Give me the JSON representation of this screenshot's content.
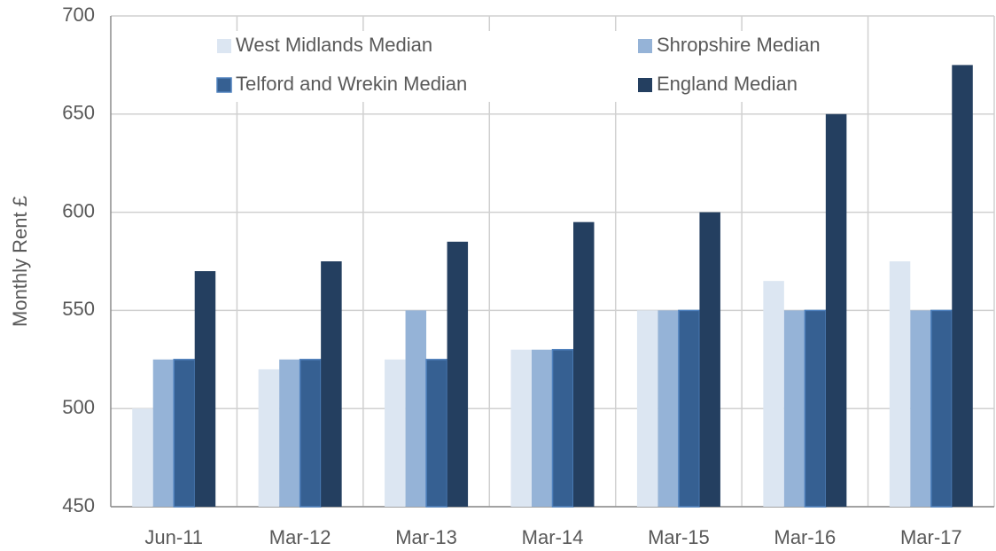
{
  "chart_data": {
    "type": "bar",
    "y_label": "Monthly Rent £",
    "categories": [
      "Jun-11",
      "Mar-12",
      "Mar-13",
      "Mar-14",
      "Mar-15",
      "Mar-16",
      "Mar-17"
    ],
    "series": [
      {
        "name": "West Midlands Median",
        "color": "#dce6f2",
        "values": [
          500,
          520,
          525,
          530,
          550,
          565,
          575
        ]
      },
      {
        "name": "Shropshire Median",
        "color": "#95b3d7",
        "values": [
          525,
          525,
          550,
          530,
          550,
          550,
          550
        ]
      },
      {
        "name": "Telford and Wrekin Median",
        "color": "#366092",
        "values": [
          525,
          525,
          525,
          530,
          550,
          550,
          550
        ]
      },
      {
        "name": "England Median",
        "color": "#243f60",
        "values": [
          570,
          575,
          585,
          595,
          600,
          650,
          675
        ]
      }
    ],
    "ylim": [
      450,
      700
    ],
    "yticks": [
      450,
      500,
      550,
      600,
      650,
      700
    ],
    "grid": true,
    "legend": "top"
  }
}
